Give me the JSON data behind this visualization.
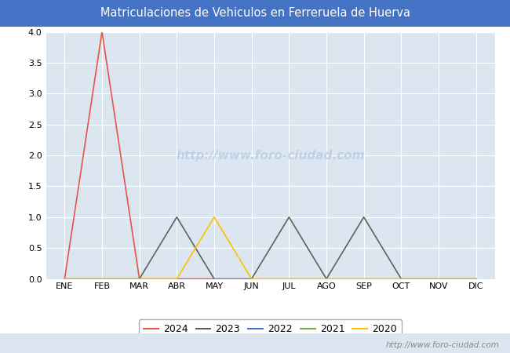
{
  "title": "Matriculaciones de Vehiculos en Ferreruela de Huerva",
  "title_bg_color": "#4472c4",
  "title_text_color": "#ffffff",
  "months": [
    "ENE",
    "FEB",
    "MAR",
    "ABR",
    "MAY",
    "JUN",
    "JUL",
    "AGO",
    "SEP",
    "OCT",
    "NOV",
    "DIC"
  ],
  "ylim": [
    0.0,
    4.0
  ],
  "yticks": [
    0.0,
    0.5,
    1.0,
    1.5,
    2.0,
    2.5,
    3.0,
    3.5,
    4.0
  ],
  "series": [
    {
      "year": "2024",
      "color": "#e8534a",
      "values": [
        0,
        4,
        0,
        0,
        0,
        null,
        null,
        null,
        null,
        null,
        null,
        null
      ]
    },
    {
      "year": "2023",
      "color": "#606060",
      "values": [
        0,
        0,
        0,
        1,
        0,
        0,
        1,
        0,
        1,
        0,
        0,
        0
      ]
    },
    {
      "year": "2022",
      "color": "#4472c4",
      "values": [
        0,
        0,
        0,
        0,
        0,
        0,
        0,
        0,
        0,
        0,
        0,
        0
      ]
    },
    {
      "year": "2021",
      "color": "#70ad47",
      "values": [
        0,
        0,
        0,
        0,
        0,
        0,
        0,
        0,
        0,
        0,
        0,
        0
      ]
    },
    {
      "year": "2020",
      "color": "#ffc000",
      "values": [
        0,
        0,
        0,
        0,
        1,
        0,
        0,
        0,
        0,
        0,
        0,
        0
      ]
    }
  ],
  "plot_bg_color": "#dce6f1",
  "grid_color": "#ffffff",
  "watermark": "http://www.foro-ciudad.com",
  "watermark_color": "#c0d0e8",
  "footer_url": "http://www.foro-ciudad.com",
  "footer_url_color": "#888888"
}
